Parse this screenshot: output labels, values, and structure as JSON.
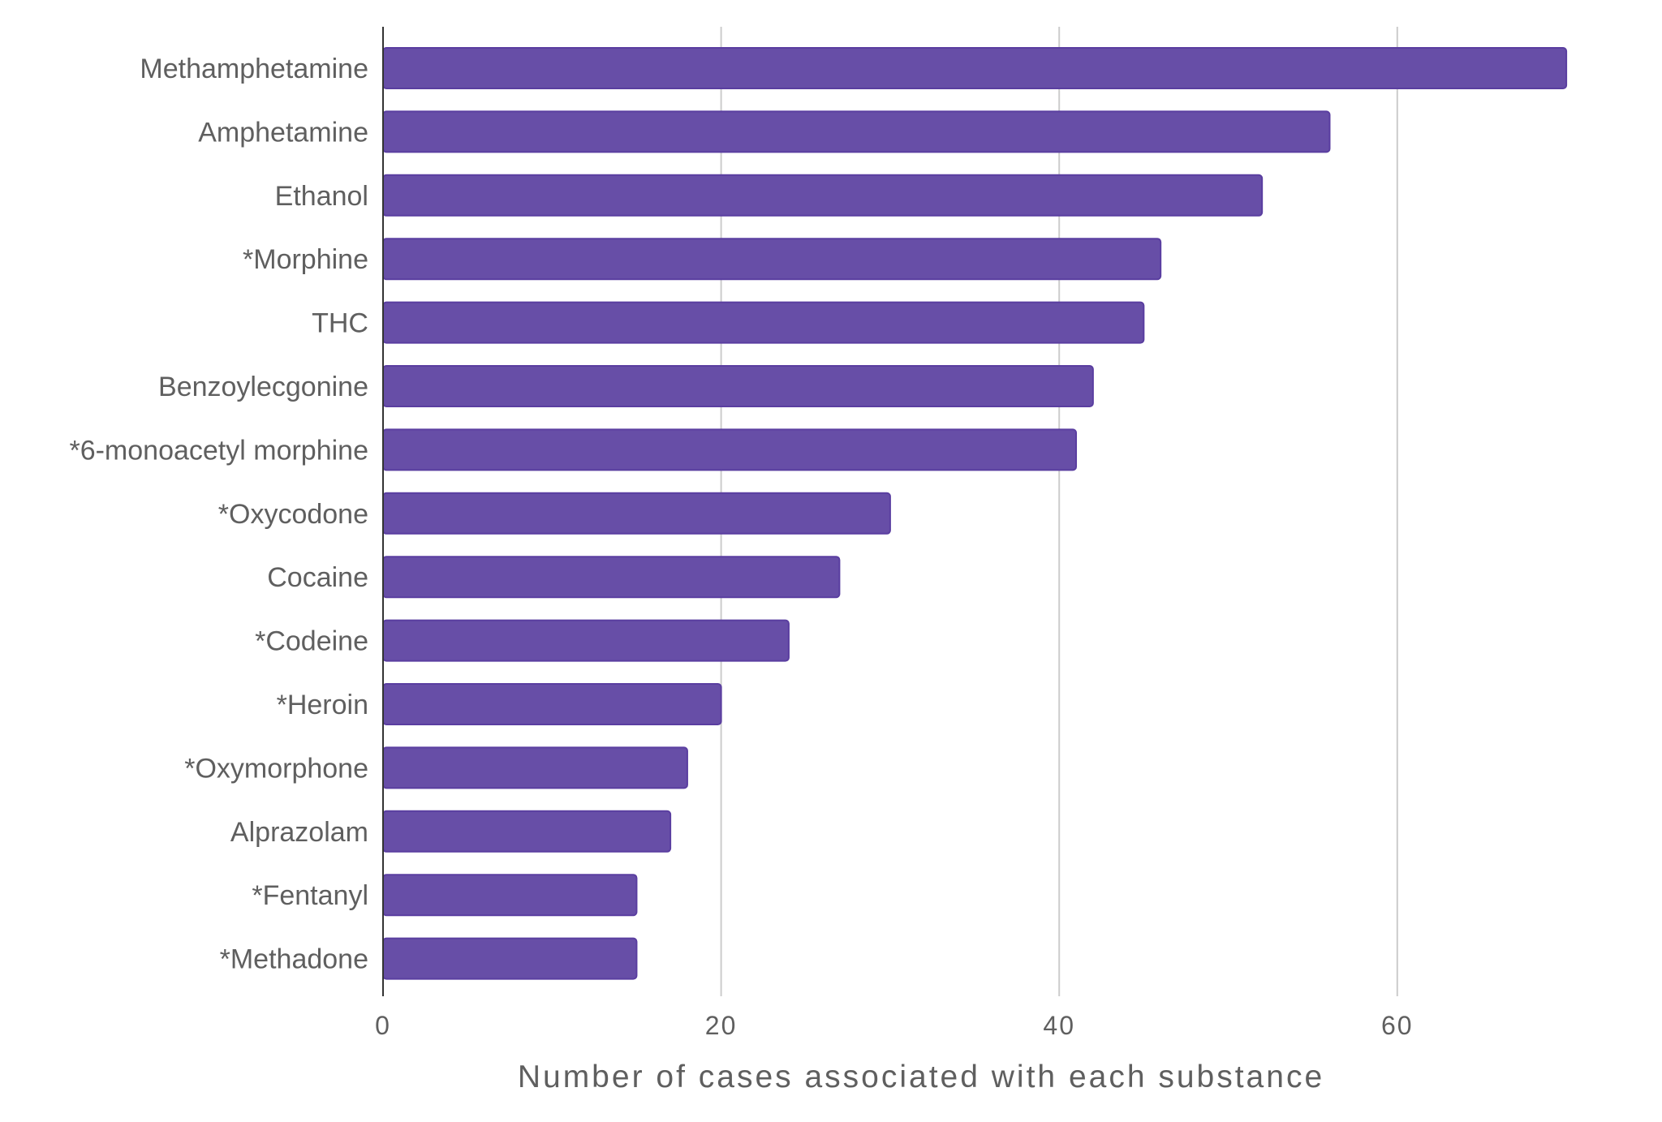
{
  "chart_data": {
    "type": "bar",
    "orientation": "horizontal",
    "title": "",
    "xlabel": "Number of cases associated with each substance",
    "ylabel": "",
    "categories": [
      "Methamphetamine",
      "Amphetamine",
      "Ethanol",
      "*Morphine",
      "THC",
      "Benzoylecgonine",
      "*6-monoacetyl morphine",
      "*Oxycodone",
      "Cocaine",
      "*Codeine",
      "*Heroin",
      "*Oxymorphone",
      "Alprazolam",
      "*Fentanyl",
      "*Methadone"
    ],
    "values": [
      70,
      56,
      52,
      46,
      45,
      42,
      41,
      30,
      27,
      24,
      20,
      18,
      17,
      15,
      15
    ],
    "xlim": [
      0,
      75
    ],
    "xticks": [
      0,
      20,
      40,
      60
    ],
    "xtick_labels": [
      "0",
      "20",
      "40",
      "60"
    ],
    "grid": "vertical",
    "legend": "none",
    "colors": {
      "bar": "#674ea7",
      "bar_border": "#5a3ea0",
      "grid": "#cccccc",
      "axis": "#333333",
      "text": "#5f5f5f"
    }
  }
}
